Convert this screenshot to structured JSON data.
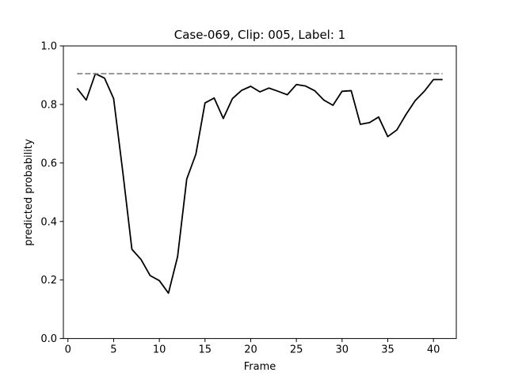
{
  "chart_data": {
    "type": "line",
    "title": "Case-069, Clip: 005, Label: 1",
    "xlabel": "Frame",
    "ylabel": "predicted probability",
    "xlim": [
      -0.5,
      42.5
    ],
    "ylim": [
      0.0,
      1.0
    ],
    "xticks": [
      0,
      5,
      10,
      15,
      20,
      25,
      30,
      35,
      40
    ],
    "xtick_labels": [
      "0",
      "5",
      "10",
      "15",
      "20",
      "25",
      "30",
      "35",
      "40"
    ],
    "yticks": [
      0.0,
      0.2,
      0.4,
      0.6,
      0.8,
      1.0
    ],
    "ytick_labels": [
      "0.0",
      "0.2",
      "0.4",
      "0.6",
      "0.8",
      "1.0"
    ],
    "grid": false,
    "series": [
      {
        "style": "solid",
        "color": "#000000",
        "x": [
          1,
          2,
          3,
          4,
          5,
          6,
          7,
          8,
          9,
          10,
          11,
          12,
          13,
          14,
          15,
          16,
          17,
          18,
          19,
          20,
          21,
          22,
          23,
          24,
          25,
          26,
          27,
          28,
          29,
          30,
          31,
          32,
          33,
          34,
          35,
          36,
          37,
          38,
          39,
          40,
          41
        ],
        "values": [
          0.855,
          0.815,
          0.905,
          0.89,
          0.82,
          0.57,
          0.305,
          0.27,
          0.215,
          0.198,
          0.155,
          0.28,
          0.545,
          0.63,
          0.805,
          0.822,
          0.752,
          0.82,
          0.848,
          0.862,
          0.843,
          0.856,
          0.845,
          0.833,
          0.868,
          0.863,
          0.847,
          0.815,
          0.797,
          0.845,
          0.847,
          0.732,
          0.738,
          0.757,
          0.69,
          0.713,
          0.766,
          0.813,
          0.845,
          0.885,
          0.885
        ]
      },
      {
        "style": "dashed",
        "color": "#808080",
        "x": [
          1,
          41
        ],
        "values": [
          0.905,
          0.905
        ]
      }
    ]
  }
}
